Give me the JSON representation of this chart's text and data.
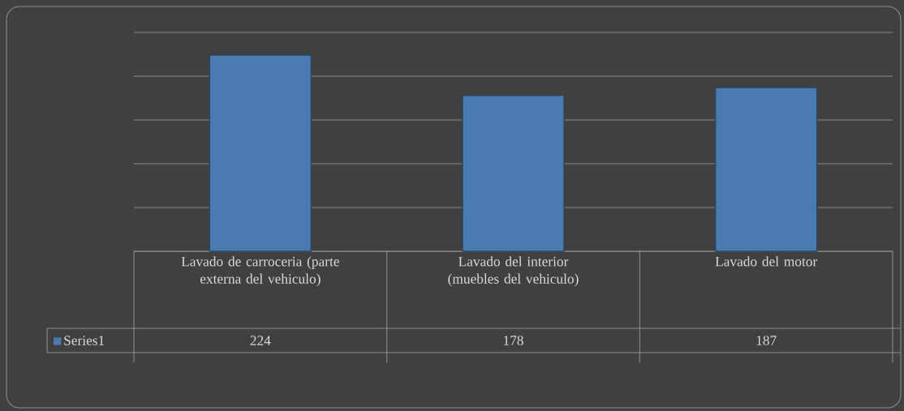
{
  "chart_data": {
    "type": "bar",
    "categories": [
      "Lavado de carroceria (parte externa del vehiculo)",
      "Lavado del interior (muebles del vehiculo)",
      "Lavado del motor"
    ],
    "series": [
      {
        "name": "Series1",
        "color": "#4a7ab0",
        "values": [
          224,
          178,
          187
        ]
      }
    ],
    "ylim": [
      0,
      250
    ],
    "yticks": [
      {
        "value": 0,
        "label": null
      },
      {
        "value": 50,
        "label": null
      },
      {
        "value": 100,
        "label": null
      },
      {
        "value": 150,
        "label": null
      },
      {
        "value": 200,
        "label": null
      },
      {
        "value": 250,
        "label": null
      }
    ],
    "grid": "y",
    "legend": "bottom left",
    "data_labels": true
  }
}
